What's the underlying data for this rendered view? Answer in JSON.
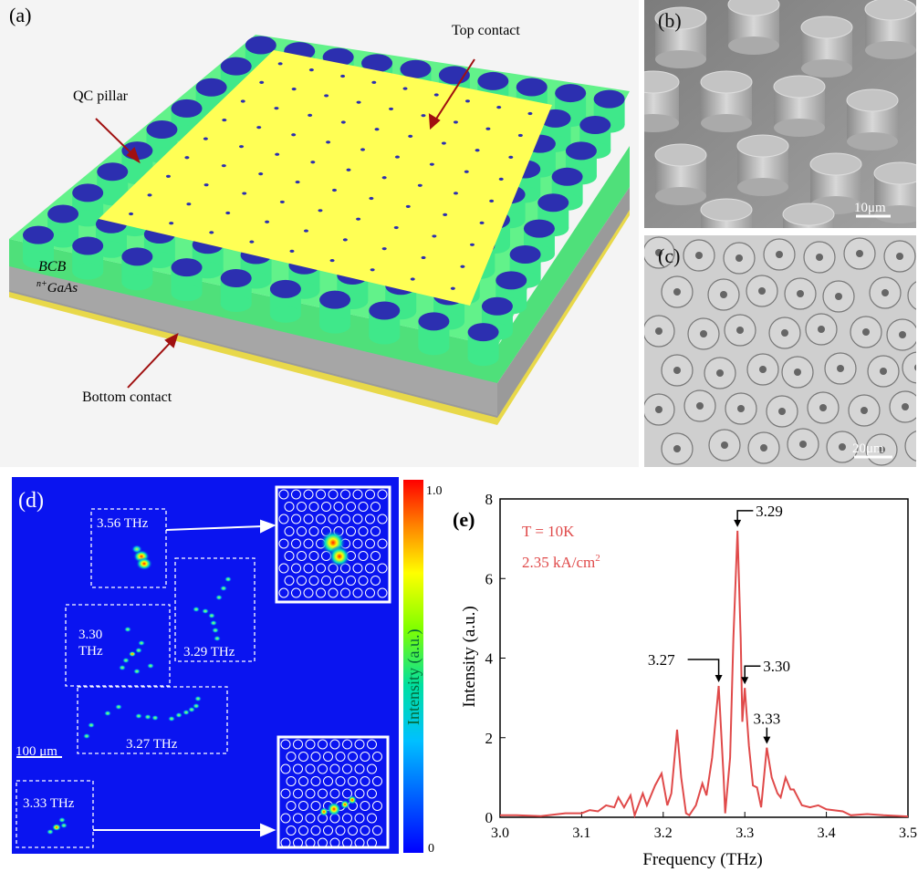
{
  "panel_a": {
    "label": "(a)",
    "top_contact": "Top contact",
    "qc_pillar": "QC pillar",
    "bcb": "BCB",
    "gaas_sup": "n+",
    "gaas": "GaAs",
    "bottom_contact": "Bottom contact",
    "colors": {
      "bcb": "#5df07a",
      "contact": "#ffff55",
      "pillar": "#2c2fb0",
      "substrate": "#9a9a9a",
      "gold": "#e8d84a",
      "arrow": "#a01010"
    }
  },
  "panel_b": {
    "label": "(b)",
    "scale_bar": "10μm"
  },
  "panel_c": {
    "label": "(c)",
    "scale_bar": "20μm"
  },
  "panel_d": {
    "label": "(d)",
    "modes": [
      "3.56 THz",
      "3.29 THz",
      "3.30 THz",
      "3.27 THz",
      "3.33 THz"
    ],
    "mode_330_line1": "3.30",
    "mode_330_line2": "THz",
    "scale_bar": "100 μm",
    "colorbar_label": "Intensity (a.u.)",
    "colorbar_max": "1.0",
    "colorbar_min": "0",
    "background": "#0a14f0"
  },
  "chart_data": {
    "type": "line",
    "panel_label": "(e)",
    "xlabel": "Frequency (THz)",
    "ylabel": "Intensity (a.u.)",
    "xlim": [
      3.0,
      3.5
    ],
    "ylim": [
      0,
      8
    ],
    "xticks": [
      "3.0",
      "3.1",
      "3.2",
      "3.3",
      "3.4",
      "3.5"
    ],
    "yticks": [
      "0",
      "2",
      "4",
      "6",
      "8"
    ],
    "annotation_temp": "T = 10K",
    "annotation_current": "2.35 kA/cm",
    "annotation_current_sup": "2",
    "line_color": "#e04a4a",
    "peak_labels": [
      {
        "text": "3.29",
        "x": 3.291,
        "y": 7.2
      },
      {
        "text": "3.27",
        "x": 3.268,
        "y": 3.3
      },
      {
        "text": "3.30",
        "x": 3.3,
        "y": 3.25
      },
      {
        "text": "3.33",
        "x": 3.327,
        "y": 1.75
      }
    ],
    "series": [
      {
        "x": [
          3.0,
          3.02,
          3.05,
          3.08,
          3.1,
          3.11,
          3.12,
          3.13,
          3.14,
          3.145,
          3.152,
          3.16,
          3.165,
          3.175,
          3.18,
          3.19,
          3.198,
          3.205,
          3.21,
          3.217,
          3.222,
          3.228,
          3.232,
          3.24,
          3.248,
          3.253,
          3.26,
          3.268,
          3.274,
          3.276,
          3.282,
          3.286,
          3.291,
          3.295,
          3.297,
          3.3,
          3.305,
          3.31,
          3.315,
          3.32,
          3.327,
          3.333,
          3.34,
          3.344,
          3.35,
          3.356,
          3.36,
          3.37,
          3.38,
          3.39,
          3.4,
          3.42,
          3.43,
          3.45,
          3.47,
          3.5
        ],
        "y": [
          0.05,
          0.05,
          0.03,
          0.1,
          0.1,
          0.18,
          0.15,
          0.3,
          0.25,
          0.5,
          0.25,
          0.55,
          0.05,
          0.6,
          0.3,
          0.8,
          1.1,
          0.3,
          0.6,
          2.2,
          1.0,
          0.1,
          0.05,
          0.3,
          0.85,
          0.55,
          1.5,
          3.3,
          1.0,
          0.1,
          1.5,
          4.5,
          7.2,
          4.5,
          2.4,
          3.25,
          1.8,
          0.8,
          0.75,
          0.25,
          1.75,
          1.0,
          0.6,
          0.5,
          1.0,
          0.7,
          0.7,
          0.3,
          0.25,
          0.3,
          0.2,
          0.15,
          0.05,
          0.08,
          0.05,
          0.02
        ]
      }
    ]
  }
}
